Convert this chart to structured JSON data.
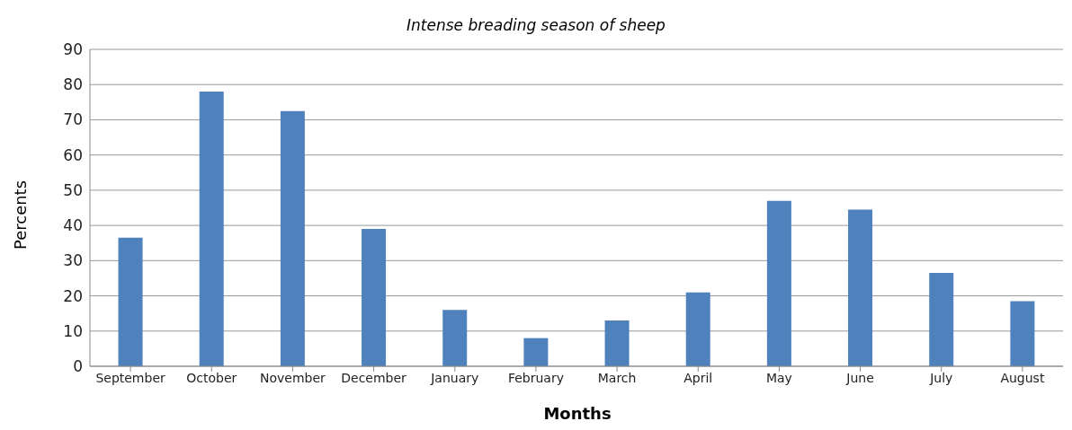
{
  "chart_data": {
    "type": "bar",
    "title": "Intense breading season of sheep",
    "xlabel": "Months",
    "ylabel": "Percents",
    "categories": [
      "September",
      "October",
      "November",
      "December",
      "January",
      "February",
      "March",
      "April",
      "May",
      "June",
      "July",
      "August"
    ],
    "values": [
      36.5,
      78,
      72.5,
      39,
      16,
      8,
      13,
      21,
      47,
      44.5,
      26.5,
      18.5
    ],
    "color": "#4f81bd",
    "ylim": [
      0,
      90
    ],
    "yticks": [
      0,
      10,
      20,
      30,
      40,
      50,
      60,
      70,
      80,
      90
    ],
    "grid": "y",
    "legend": false
  }
}
